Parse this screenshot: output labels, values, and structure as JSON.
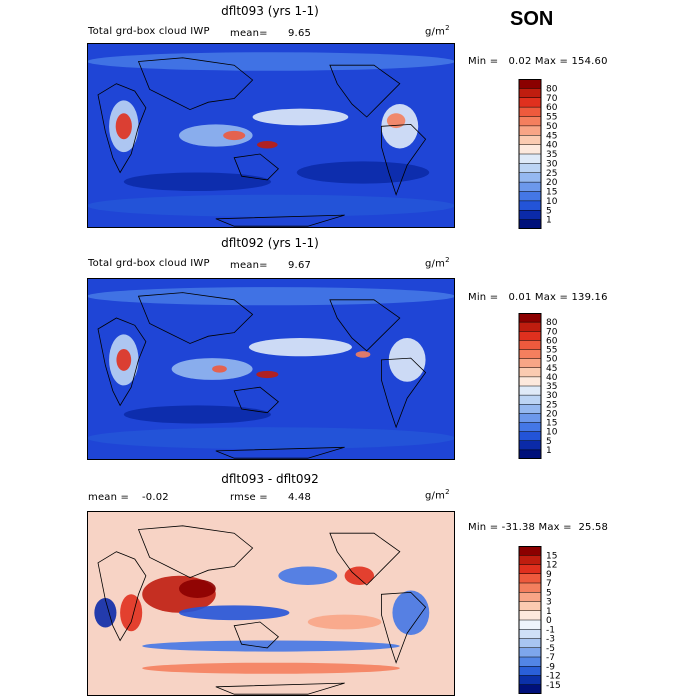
{
  "season": "SON",
  "chart_data": [
    {
      "type": "heatmap",
      "title": "dflt093 (yrs 1-1)",
      "variable": "Total grd-box cloud IWP",
      "mean_label": "mean=",
      "mean_value": "9.65",
      "unit_base": "g/m",
      "unit_exp": "2",
      "minmax_text": "Min =   0.02 Max = 154.60",
      "min": 0.02,
      "max": 154.6,
      "colorbar_levels": [
        "80",
        "70",
        "60",
        "55",
        "50",
        "45",
        "40",
        "35",
        "30",
        "25",
        "20",
        "15",
        "10",
        "5",
        "1"
      ],
      "colorbar_colors": [
        "#8b0000",
        "#bf1d0f",
        "#e0301e",
        "#ee5a3d",
        "#f47f5e",
        "#f8a586",
        "#fbcbb1",
        "#fde9dd",
        "#dfeaf8",
        "#bcd4f4",
        "#95b8f0",
        "#6c98ec",
        "#4477e6",
        "#2354d8",
        "#0b2aa8",
        "#00107a"
      ]
    },
    {
      "type": "heatmap",
      "title": "dflt092 (yrs 1-1)",
      "variable": "Total grd-box cloud IWP",
      "mean_label": "mean=",
      "mean_value": "9.67",
      "unit_base": "g/m",
      "unit_exp": "2",
      "minmax_text": "Min =   0.01 Max = 139.16",
      "min": 0.01,
      "max": 139.16,
      "colorbar_levels": [
        "80",
        "70",
        "60",
        "55",
        "50",
        "45",
        "40",
        "35",
        "30",
        "25",
        "20",
        "15",
        "10",
        "5",
        "1"
      ],
      "colorbar_colors": [
        "#8b0000",
        "#bf1d0f",
        "#e0301e",
        "#ee5a3d",
        "#f47f5e",
        "#f8a586",
        "#fbcbb1",
        "#fde9dd",
        "#dfeaf8",
        "#bcd4f4",
        "#95b8f0",
        "#6c98ec",
        "#4477e6",
        "#2354d8",
        "#0b2aa8",
        "#00107a"
      ]
    },
    {
      "type": "heatmap",
      "title": "dflt093 - dflt092",
      "mean_label": "mean =",
      "mean_value": "-0.02",
      "rmse_label": "rmse =",
      "rmse_value": "4.48",
      "unit_base": "g/m",
      "unit_exp": "2",
      "minmax_text": "Min = -31.38 Max =  25.58",
      "min": -31.38,
      "max": 25.58,
      "colorbar_levels": [
        "15",
        "12",
        "9",
        "7",
        "5",
        "3",
        "1",
        "0",
        "-1",
        "-3",
        "-5",
        "-7",
        "-9",
        "-12",
        "-15"
      ],
      "colorbar_colors": [
        "#8b0000",
        "#bf1d0f",
        "#e0301e",
        "#ee5a3d",
        "#f47f5e",
        "#f8a586",
        "#fbcbb1",
        "#fde9dd",
        "#eef4fc",
        "#cfe0f7",
        "#a8c5f1",
        "#7ea6ec",
        "#5285e6",
        "#2a5fd8",
        "#0b30a8",
        "#00107a"
      ]
    }
  ]
}
